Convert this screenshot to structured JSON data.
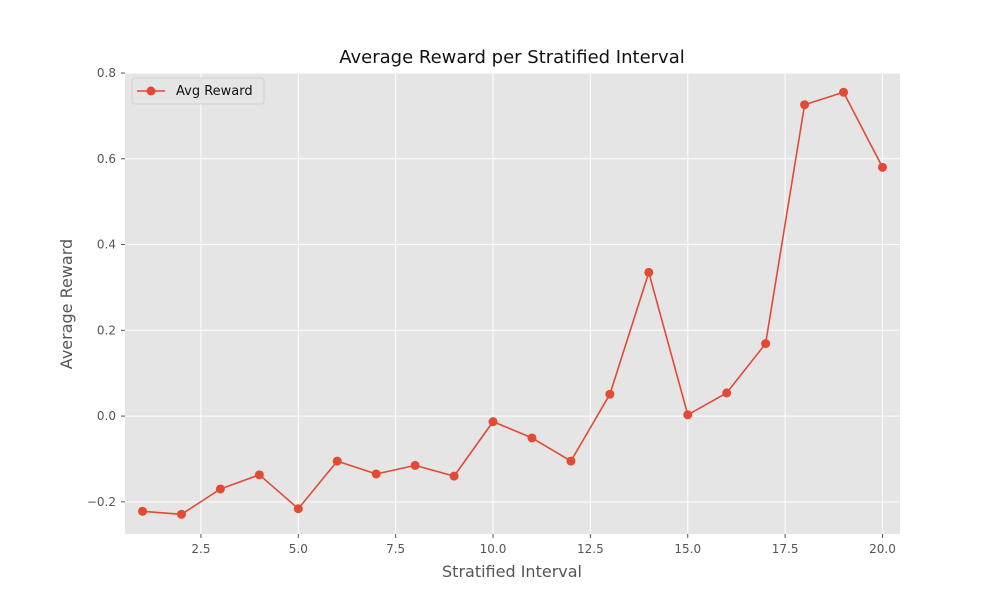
{
  "chart_data": {
    "type": "line",
    "title": "Average Reward per Stratified Interval",
    "xlabel": "Stratified Interval",
    "ylabel": "Average Reward",
    "xlim": [
      0.55,
      20.45
    ],
    "ylim": [
      -0.275,
      0.8
    ],
    "xticks": [
      2.5,
      5.0,
      7.5,
      10.0,
      12.5,
      15.0,
      17.5,
      20.0
    ],
    "xtick_labels": [
      "2.5",
      "5.0",
      "7.5",
      "10.0",
      "12.5",
      "15.0",
      "17.5",
      "20.0"
    ],
    "yticks": [
      -0.2,
      0.0,
      0.2,
      0.4,
      0.6,
      0.8
    ],
    "ytick_labels": [
      "−0.2",
      "0.0",
      "0.2",
      "0.4",
      "0.6",
      "0.8"
    ],
    "grid": true,
    "legend": {
      "position": "top-left"
    },
    "series": [
      {
        "name": "Avg Reward",
        "color": "#E24A33",
        "marker": "circle",
        "x": [
          1,
          2,
          3,
          4,
          5,
          6,
          7,
          8,
          9,
          10,
          11,
          12,
          13,
          14,
          15,
          16,
          17,
          18,
          19,
          20
        ],
        "y": [
          -0.222,
          -0.229,
          -0.17,
          -0.137,
          -0.216,
          -0.105,
          -0.135,
          -0.115,
          -0.14,
          -0.013,
          -0.051,
          -0.105,
          0.051,
          0.335,
          0.003,
          0.054,
          0.169,
          0.726,
          0.755,
          0.58
        ]
      }
    ],
    "colors": {
      "plot_background": "#E5E5E5",
      "grid": "#FFFFFF",
      "tick_text": "#555555",
      "title_text": "#111111"
    }
  }
}
